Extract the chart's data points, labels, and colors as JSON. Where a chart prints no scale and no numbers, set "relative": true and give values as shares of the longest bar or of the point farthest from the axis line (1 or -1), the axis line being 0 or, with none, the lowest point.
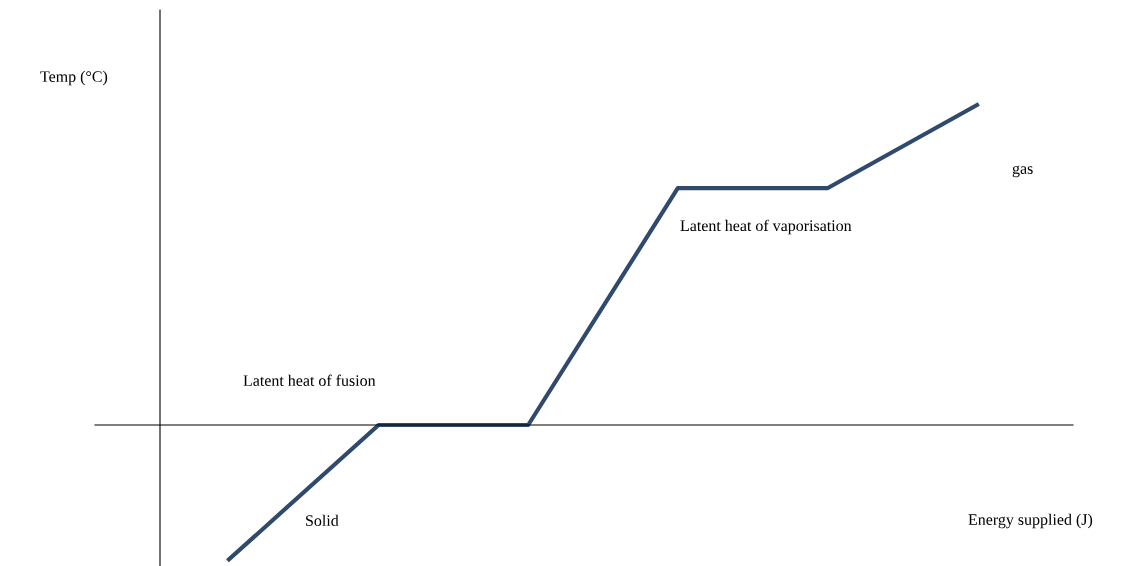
{
  "chart_data": {
    "type": "line",
    "relative": true,
    "xlabel": "Energy supplied (J)",
    "ylabel": "Temp (°C)",
    "categories": [
      null,
      null,
      null,
      null,
      null,
      null
    ],
    "series": [
      {
        "color": "#2f4a6d",
        "values": [
          -0.42,
          0,
          0,
          0.74,
          0.74,
          1
        ]
      }
    ],
    "annotations": [
      "Latent heat of fusion",
      "Latent heat of vaporisation",
      "gas",
      "Solid"
    ],
    "marker": "none",
    "line_style": "solid"
  }
}
